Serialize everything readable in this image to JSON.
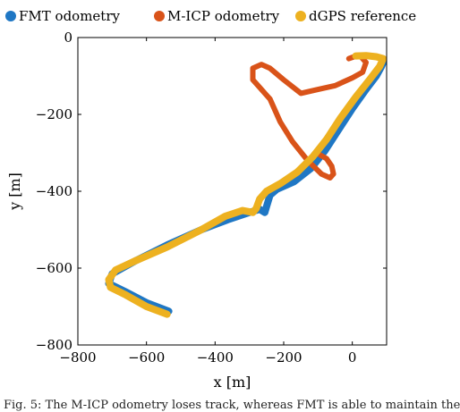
{
  "chart_data": {
    "type": "line",
    "xlabel": "x [m]",
    "ylabel": "y [m]",
    "xlim": [
      -800,
      100
    ],
    "ylim": [
      -800,
      0
    ],
    "xticks": [
      -800,
      -600,
      -400,
      -200,
      0
    ],
    "yticks": [
      0,
      -200,
      -400,
      -600,
      -800
    ],
    "xtick_labels": [
      "−800",
      "−600",
      "−400",
      "−200",
      "0"
    ],
    "ytick_labels": [
      "0",
      "−200",
      "−400",
      "−600",
      "−800"
    ],
    "grid": false,
    "legend_position": "top",
    "series": [
      {
        "name": "FMT odometry",
        "color": "#1f77c4",
        "x": [
          -535,
          -600,
          -660,
          -710,
          -700,
          -630,
          -540,
          -440,
          -360,
          -300,
          -270,
          -255,
          -250,
          -240,
          -220,
          -170,
          -120,
          -80,
          -40,
          0,
          40,
          70,
          85,
          90
        ],
        "y": [
          -712,
          -690,
          -662,
          -640,
          -615,
          -580,
          -540,
          -500,
          -473,
          -455,
          -447,
          -455,
          -440,
          -410,
          -395,
          -375,
          -340,
          -295,
          -240,
          -185,
          -135,
          -100,
          -75,
          -65
        ]
      },
      {
        "name": "M-ICP odometry",
        "color": "#d95319",
        "x": [
          -95,
          -75,
          -60,
          -55,
          -65,
          -90,
          -130,
          -175,
          -210,
          -230,
          -240,
          -250,
          -270,
          -290,
          -290,
          -265,
          -240,
          -200,
          -150,
          -100,
          -50,
          0,
          30,
          40,
          25,
          5,
          -10
        ],
        "y": [
          -305,
          -315,
          -335,
          -355,
          -365,
          -355,
          -320,
          -270,
          -220,
          -180,
          -160,
          -150,
          -130,
          -110,
          -80,
          -70,
          -80,
          -110,
          -145,
          -135,
          -125,
          -105,
          -90,
          -65,
          -50,
          -50,
          -55
        ]
      },
      {
        "name": "dGPS reference",
        "color": "#edb120",
        "x": [
          -540,
          -600,
          -660,
          -705,
          -710,
          -690,
          -630,
          -540,
          -440,
          -370,
          -320,
          -290,
          -280,
          -270,
          -250,
          -210,
          -160,
          -115,
          -75,
          -35,
          10,
          50,
          80,
          90,
          70,
          40,
          10
        ],
        "y": [
          -720,
          -700,
          -670,
          -650,
          -630,
          -605,
          -580,
          -545,
          -500,
          -465,
          -450,
          -455,
          -445,
          -420,
          -400,
          -380,
          -350,
          -310,
          -265,
          -210,
          -155,
          -110,
          -75,
          -55,
          -50,
          -47,
          -48
        ]
      }
    ]
  },
  "caption": "Fig. 5: The M-ICP odometry loses track, whereas FMT is able to maintain the"
}
